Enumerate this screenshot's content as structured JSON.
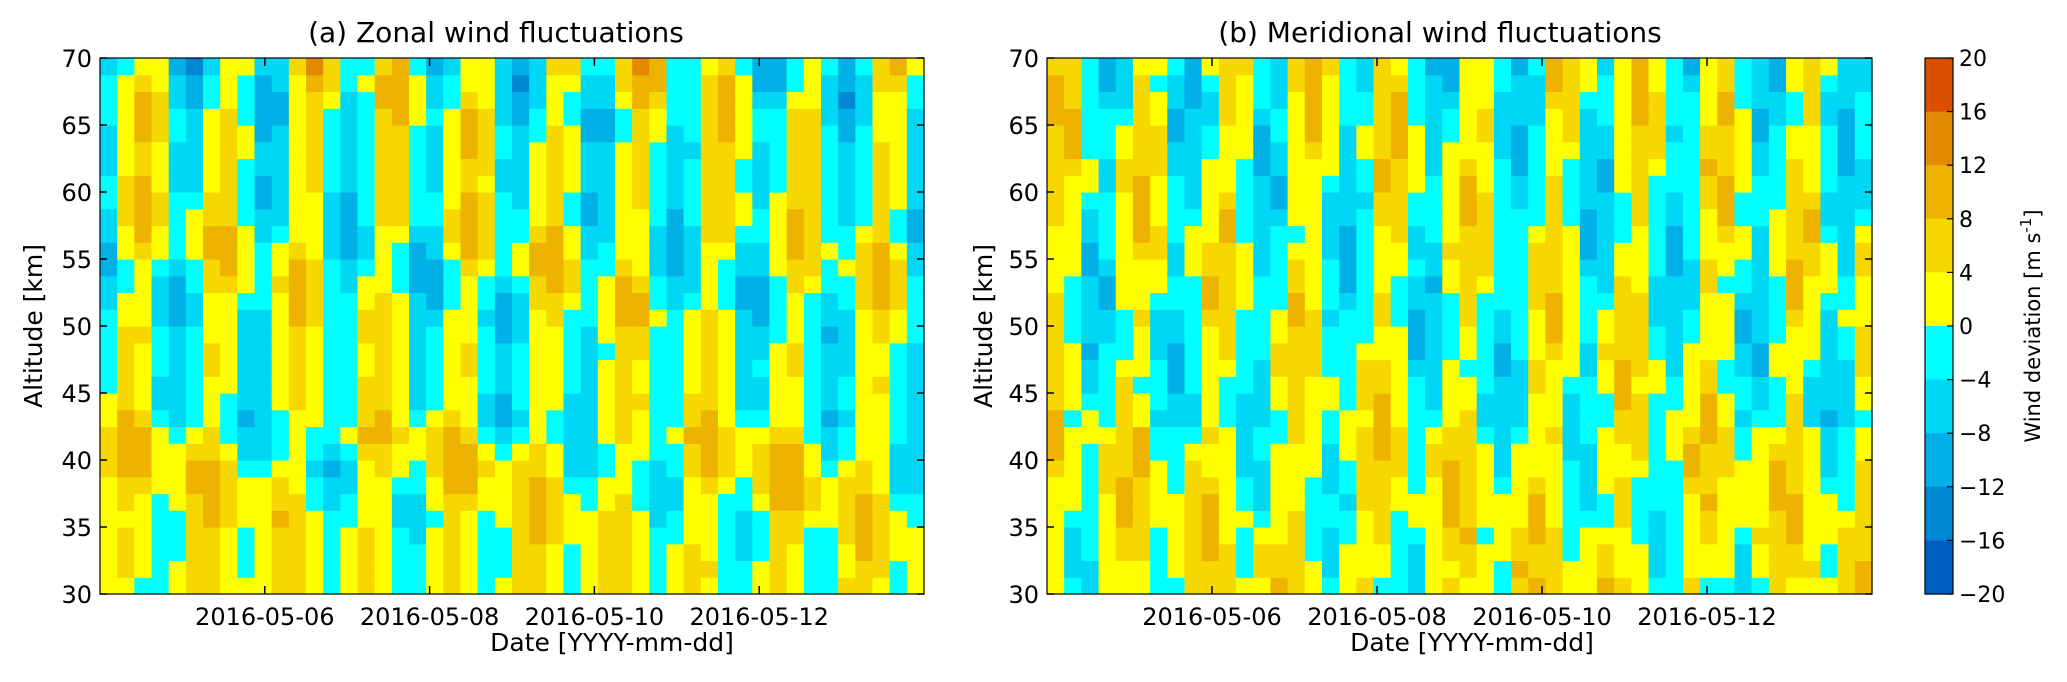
{
  "chart_data": [
    {
      "type": "heatmap",
      "title": "(a) Zonal wind fluctuations",
      "xlabel": "Date  [YYYY-mm-dd]",
      "ylabel": "Altitude [km]",
      "ylim": [
        30,
        70
      ],
      "yticks": [
        "30",
        "35",
        "40",
        "45",
        "50",
        "55",
        "60",
        "65",
        "70"
      ],
      "xlim": [
        "2016-05-04",
        "2016-05-14"
      ],
      "xticks": [
        {
          "date": "2016-05-06",
          "label": "2016-05-06"
        },
        {
          "date": "2016-05-08",
          "label": "2016-05-08"
        },
        {
          "date": "2016-05-10",
          "label": "2016-05-10"
        },
        {
          "date": "2016-05-12",
          "label": "2016-05-12"
        }
      ],
      "time_bins": 48,
      "altitude_bins": 32,
      "dominant_period_days": 1,
      "value_range_ms": [
        -12,
        16
      ]
    },
    {
      "type": "heatmap",
      "title": "(b) Meridional wind fluctuations",
      "xlabel": "Date  [YYYY-mm-dd]",
      "ylabel": "Altitude [km]",
      "ylim": [
        30,
        70
      ],
      "yticks": [
        "30",
        "35",
        "40",
        "45",
        "50",
        "55",
        "60",
        "65",
        "70"
      ],
      "xlim": [
        "2016-05-04",
        "2016-05-14"
      ],
      "xticks": [
        {
          "date": "2016-05-06",
          "label": "2016-05-06"
        },
        {
          "date": "2016-05-08",
          "label": "2016-05-08"
        },
        {
          "date": "2016-05-10",
          "label": "2016-05-10"
        },
        {
          "date": "2016-05-12",
          "label": "2016-05-12"
        }
      ],
      "time_bins": 48,
      "altitude_bins": 32,
      "dominant_period_days": 1,
      "value_range_ms": [
        -12,
        14
      ]
    }
  ],
  "colorbar": {
    "label_main": "Wind deviation [m s",
    "label_sup": "-1",
    "label_end": "]",
    "range": [
      -20,
      20
    ],
    "ticks": [
      "20",
      "16",
      "12",
      "8",
      "4",
      "0",
      "−4",
      "−8",
      "−12",
      "−16",
      "−20"
    ],
    "colors": {
      "positive": [
        "#ffff00",
        "#f7d700",
        "#eeb200",
        "#e48a00",
        "#d84f00",
        "#c82200"
      ],
      "negative": [
        "#00ffff",
        "#00d7f5",
        "#00b0e6",
        "#0088d4",
        "#0060c0",
        "#0038a5"
      ]
    }
  }
}
